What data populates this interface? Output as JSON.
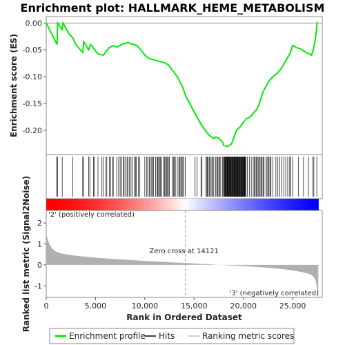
{
  "chart_data": {
    "type": "line",
    "title": "Enrichment plot: HALLMARK_HEME_METABOLISM",
    "xlabel": "Rank in Ordered Dataset",
    "ylabel_top": "Enrichment score (ES)",
    "ylabel_bottom": "Ranked list metric (Signal2Noise)",
    "xlim": [
      0,
      28000
    ],
    "x_ticks": [
      0,
      5000,
      10000,
      15000,
      20000,
      25000
    ],
    "x_tick_labels": [
      "0",
      "5,000",
      "10,000",
      "15,000",
      "20,000",
      "25,000"
    ],
    "es_ylim": [
      -0.245,
      0.012
    ],
    "es_ticks": [
      0.0,
      -0.05,
      -0.1,
      -0.15,
      -0.2
    ],
    "es_tick_labels": [
      "0.00",
      "-0.05",
      "-0.10",
      "-0.15",
      "-0.20"
    ],
    "metric_ylim": [
      -1.55,
      2.6
    ],
    "metric_ticks": [
      2,
      1,
      0,
      -1
    ],
    "metric_tick_labels": [
      "2",
      "1",
      "0",
      "-1"
    ],
    "total_ranks": 27600,
    "zero_cross_rank": 14121,
    "zero_cross_label": "Zero cross at 14121",
    "positive_label": "'2' (positively correlated)",
    "negative_label": "'3' (negatively correlated)",
    "enrichment_profile": {
      "name": "Enrichment profile",
      "x": [
        0,
        1100,
        1150,
        1600,
        1700,
        2300,
        2700,
        3000,
        3700,
        3800,
        4300,
        4500,
        4800,
        5000,
        5300,
        5800,
        6100,
        6400,
        6800,
        7200,
        7600,
        8000,
        8300,
        8600,
        8900,
        9200,
        9500,
        10000,
        10400,
        10800,
        11200,
        11600,
        12000,
        12400,
        12800,
        13300,
        13800,
        14200,
        14700,
        15200,
        15700,
        16200,
        16600,
        17000,
        17200,
        17600,
        17900,
        18000,
        18400,
        18800,
        19000,
        19300,
        19700,
        20000,
        20300,
        20700,
        21000,
        21400,
        21700,
        22000,
        22300,
        22600,
        23000,
        23400,
        23700,
        24000,
        24300,
        24700,
        25000,
        25400,
        25800,
        26100,
        26500,
        26900,
        27100,
        27300,
        27500
      ],
      "values": [
        0.0,
        -0.04,
        0.0,
        -0.012,
        0.0,
        -0.02,
        -0.028,
        -0.04,
        -0.055,
        -0.035,
        -0.05,
        -0.04,
        -0.047,
        -0.052,
        -0.058,
        -0.06,
        -0.052,
        -0.046,
        -0.042,
        -0.045,
        -0.04,
        -0.038,
        -0.036,
        -0.039,
        -0.04,
        -0.042,
        -0.048,
        -0.06,
        -0.066,
        -0.068,
        -0.07,
        -0.072,
        -0.074,
        -0.078,
        -0.088,
        -0.1,
        -0.118,
        -0.138,
        -0.155,
        -0.172,
        -0.188,
        -0.202,
        -0.21,
        -0.215,
        -0.212,
        -0.216,
        -0.222,
        -0.228,
        -0.23,
        -0.225,
        -0.215,
        -0.2,
        -0.193,
        -0.185,
        -0.178,
        -0.175,
        -0.168,
        -0.16,
        -0.145,
        -0.128,
        -0.118,
        -0.108,
        -0.1,
        -0.094,
        -0.088,
        -0.08,
        -0.07,
        -0.058,
        -0.042,
        -0.046,
        -0.048,
        -0.052,
        -0.056,
        -0.06,
        -0.05,
        -0.03,
        0.002
      ]
    },
    "hits": [
      1050,
      1150,
      1620,
      2700,
      3700,
      3800,
      4300,
      4420,
      4800,
      4900,
      5250,
      5650,
      5800,
      6050,
      6150,
      6400,
      6550,
      6750,
      6800,
      7150,
      7350,
      7500,
      7650,
      7800,
      7900,
      8050,
      8200,
      8300,
      8450,
      8600,
      8750,
      8950,
      9050,
      9150,
      9350,
      9500,
      10000,
      10200,
      10300,
      10450,
      10550,
      10700,
      10800,
      10900,
      11100,
      11250,
      11300,
      11400,
      11500,
      11600,
      11700,
      11900,
      12000,
      12100,
      12200,
      12300,
      12400,
      12500,
      12800,
      12900,
      13000,
      13100,
      13300,
      13450,
      13550,
      13650,
      13750,
      13850,
      13950,
      14100,
      15100,
      15300,
      15700,
      15800,
      16200,
      16300,
      16350,
      16450,
      16550,
      16700,
      16800,
      16900,
      17000,
      17200,
      17300,
      17400,
      17500,
      17600,
      17700,
      17900,
      18000,
      18050,
      18100,
      18150,
      18200,
      18250,
      18300,
      18350,
      18400,
      18450,
      18500,
      18550,
      18600,
      18650,
      18700,
      18750,
      18800,
      18850,
      18900,
      18950,
      19000,
      19050,
      19100,
      19150,
      19200,
      19250,
      19300,
      19350,
      19400,
      19450,
      19500,
      19550,
      19600,
      19650,
      19700,
      19750,
      19800,
      19850,
      19900,
      19950,
      20000,
      20050,
      20100,
      20150,
      20200,
      20250,
      20400,
      20600,
      20800,
      21000,
      21100,
      21200,
      21300,
      21400,
      21500,
      21600,
      21700,
      21800,
      21900,
      22000,
      22100,
      22300,
      22400,
      22500,
      22600,
      22700,
      22800,
      23000,
      23300,
      23500,
      23700,
      23900,
      24100,
      24300,
      24500,
      24700,
      24800,
      25000,
      25600,
      26100,
      26600,
      27050,
      27150,
      27450
    ]
  },
  "legend": {
    "profile_label": "Enrichment profile",
    "hits_label": "Hits",
    "metric_label": "Ranking metric scores"
  },
  "colors": {
    "profile": "#00ee00",
    "hits": "#000000",
    "metric_fill": "#b0b0b0",
    "positive": "#ff0000",
    "negative": "#0000ff",
    "positive_label": "#ee0000",
    "negative_label": "#3333cc"
  }
}
